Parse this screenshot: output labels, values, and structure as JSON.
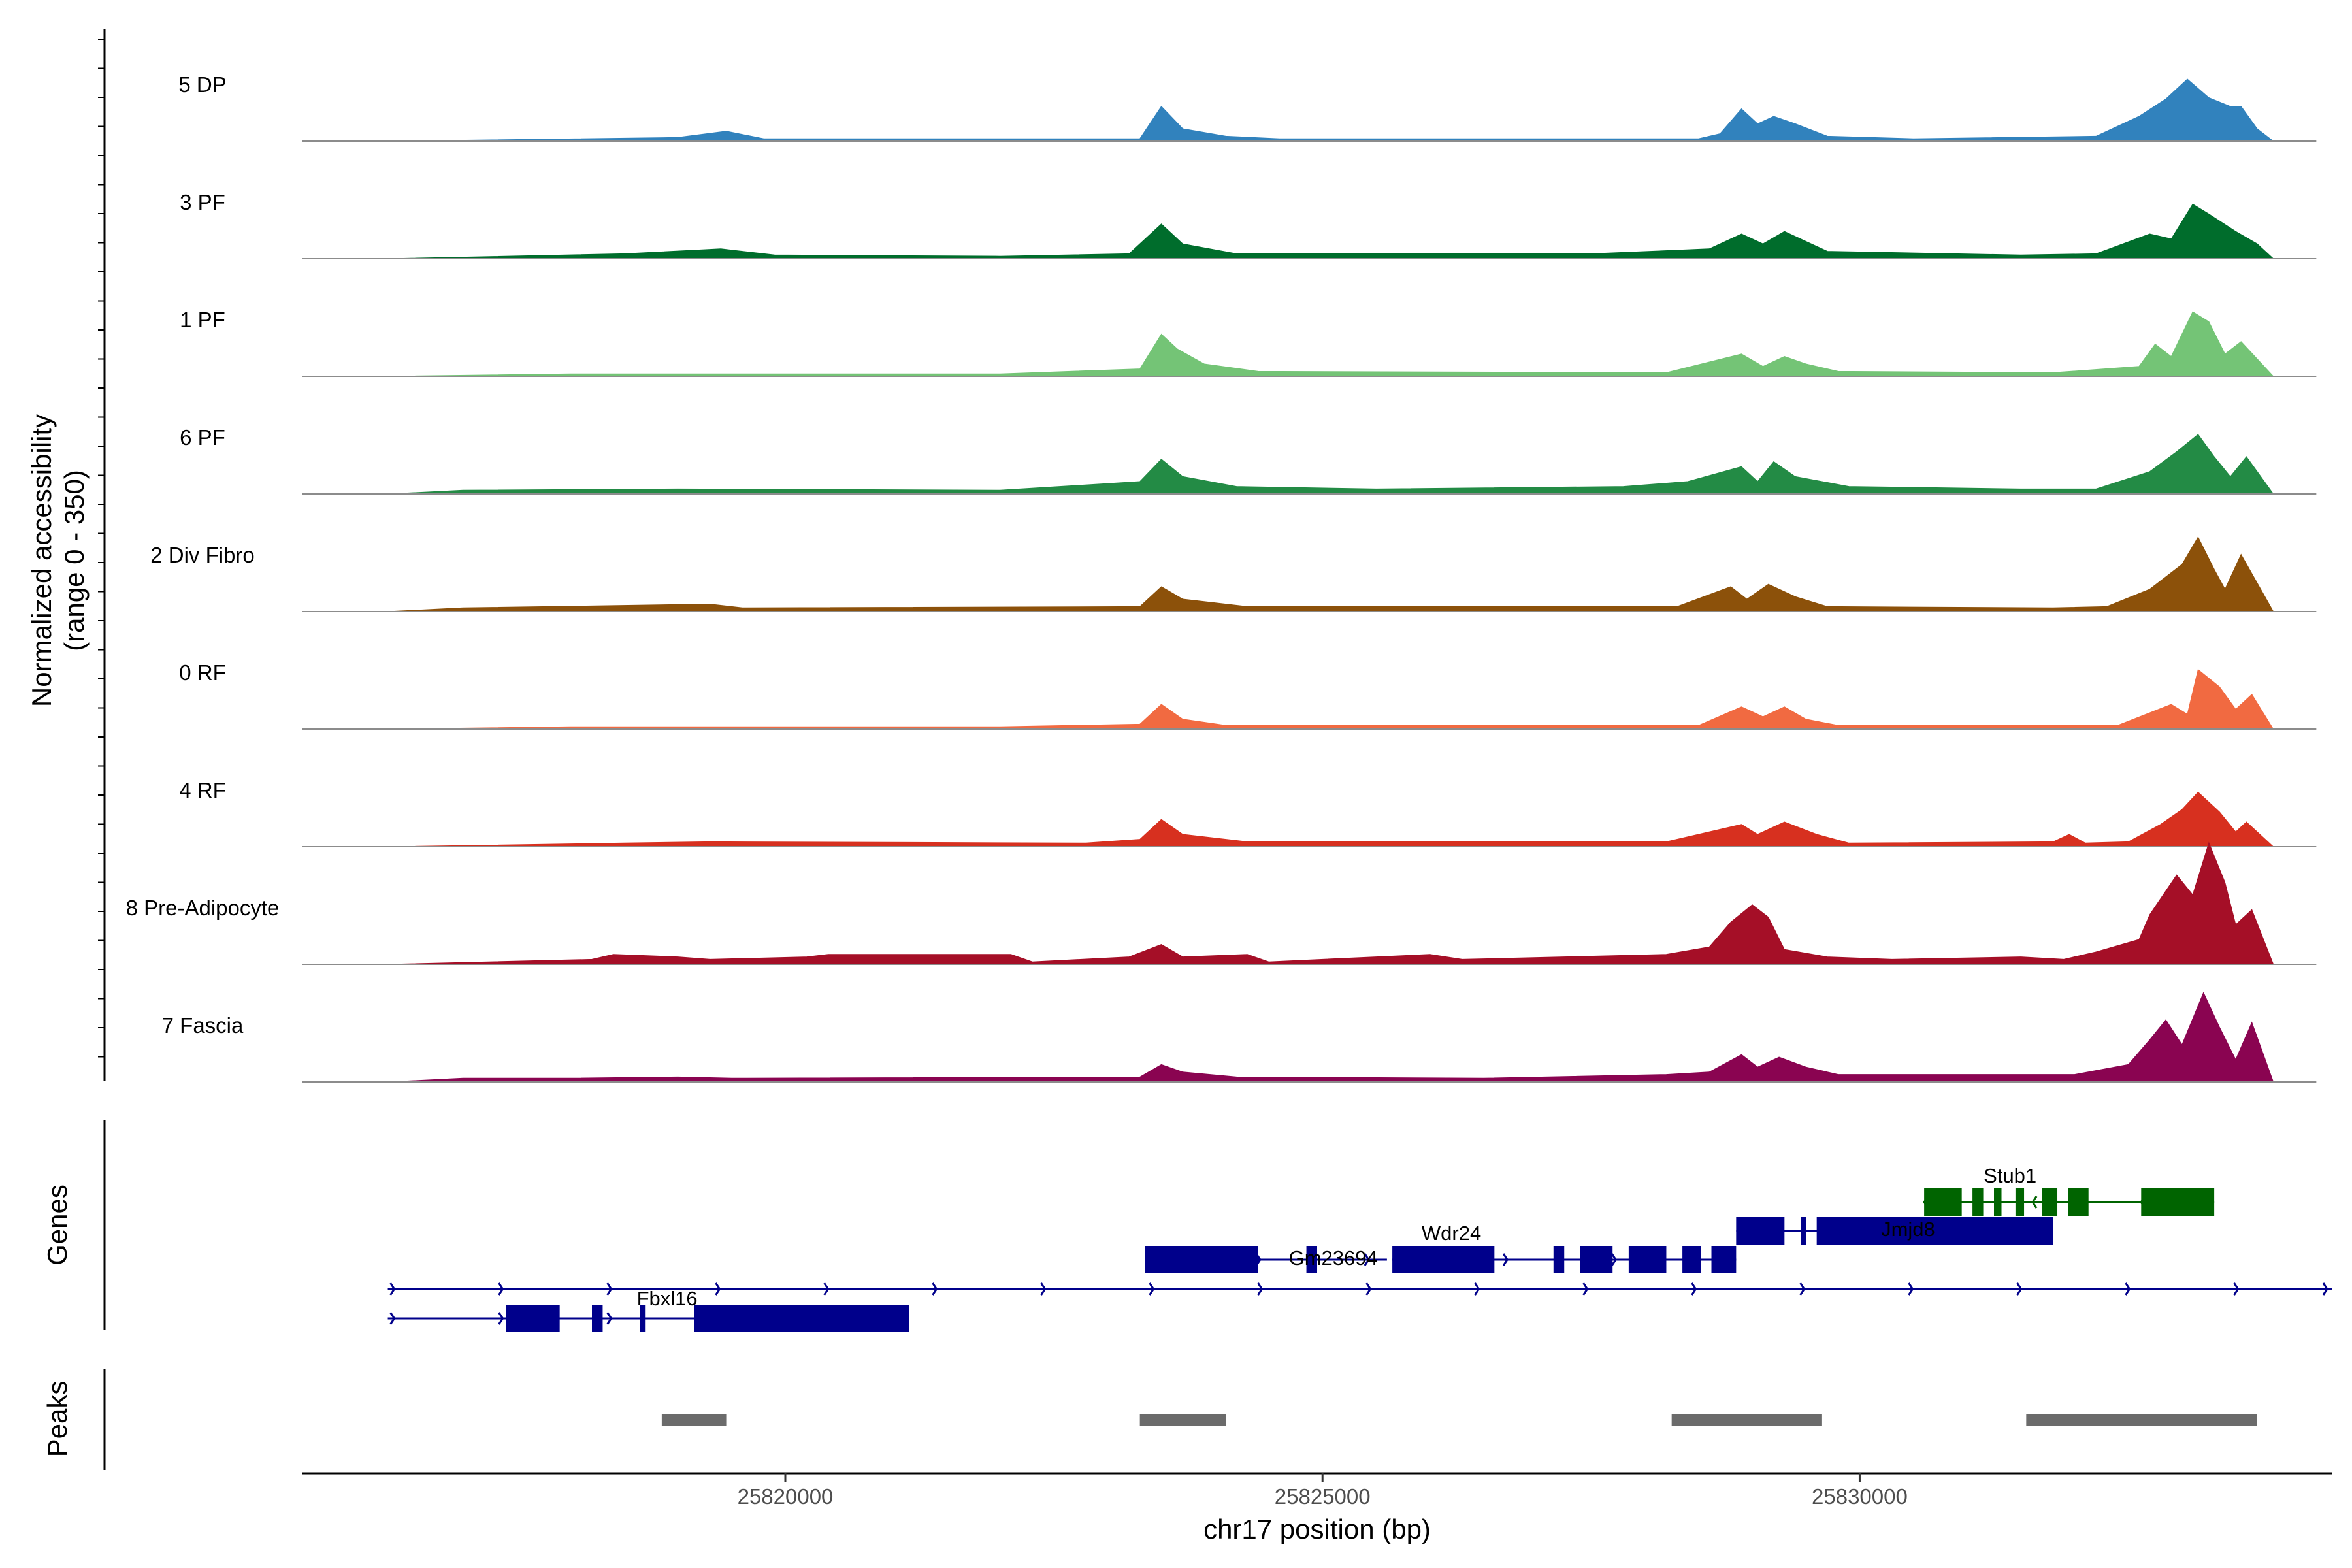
{
  "chart_data": {
    "type": "area",
    "title": "",
    "ylabel": "Normalized accessibility\n(range 0 - 350)",
    "xlabel": "chr17 position (bp)",
    "y_range": [
      0,
      350
    ],
    "x_range": [
      25815500,
      25834400
    ],
    "x_ticks": [
      25820000,
      25825000,
      25830000
    ],
    "x_tick_labels": [
      "25820000",
      "25825000",
      "25830000"
    ],
    "tracks_label": "Genes",
    "peaks_label": "Peaks",
    "series": [
      {
        "name": "5 DP",
        "color": "#3182BD",
        "values": [
          [
            25816300,
            0
          ],
          [
            25819000,
            3
          ],
          [
            25819450,
            8
          ],
          [
            25819800,
            2
          ],
          [
            25823300,
            2
          ],
          [
            25823500,
            28
          ],
          [
            25823700,
            10
          ],
          [
            25824100,
            4
          ],
          [
            25824600,
            2
          ],
          [
            25828500,
            2
          ],
          [
            25828700,
            6
          ],
          [
            25828900,
            26
          ],
          [
            25829050,
            14
          ],
          [
            25829200,
            20
          ],
          [
            25829400,
            14
          ],
          [
            25829700,
            4
          ],
          [
            25830500,
            2
          ],
          [
            25832200,
            4
          ],
          [
            25832600,
            20
          ],
          [
            25832850,
            34
          ],
          [
            25833050,
            50
          ],
          [
            25833250,
            35
          ],
          [
            25833450,
            28
          ],
          [
            25833550,
            28
          ],
          [
            25833700,
            10
          ],
          [
            25833850,
            0
          ]
        ]
      },
      {
        "name": "3 PF",
        "color": "#006D2C",
        "values": [
          [
            25816300,
            0
          ],
          [
            25818500,
            4
          ],
          [
            25819400,
            8
          ],
          [
            25819900,
            3
          ],
          [
            25822000,
            2
          ],
          [
            25823200,
            4
          ],
          [
            25823500,
            28
          ],
          [
            25823700,
            12
          ],
          [
            25824200,
            4
          ],
          [
            25827500,
            4
          ],
          [
            25828600,
            8
          ],
          [
            25828900,
            20
          ],
          [
            25829100,
            12
          ],
          [
            25829300,
            22
          ],
          [
            25829500,
            14
          ],
          [
            25829700,
            6
          ],
          [
            25831500,
            3
          ],
          [
            25832200,
            4
          ],
          [
            25832700,
            20
          ],
          [
            25832900,
            16
          ],
          [
            25833100,
            44
          ],
          [
            25833250,
            36
          ],
          [
            25833500,
            22
          ],
          [
            25833700,
            12
          ],
          [
            25833850,
            0
          ]
        ]
      },
      {
        "name": "1 PF",
        "color": "#74C476",
        "values": [
          [
            25816300,
            0
          ],
          [
            25818000,
            2
          ],
          [
            25822000,
            2
          ],
          [
            25823300,
            6
          ],
          [
            25823500,
            34
          ],
          [
            25823650,
            22
          ],
          [
            25823900,
            10
          ],
          [
            25824400,
            4
          ],
          [
            25828200,
            3
          ],
          [
            25828900,
            18
          ],
          [
            25829100,
            8
          ],
          [
            25829300,
            16
          ],
          [
            25829500,
            10
          ],
          [
            25829800,
            4
          ],
          [
            25831800,
            3
          ],
          [
            25832600,
            8
          ],
          [
            25832750,
            26
          ],
          [
            25832900,
            16
          ],
          [
            25833100,
            52
          ],
          [
            25833250,
            44
          ],
          [
            25833400,
            18
          ],
          [
            25833550,
            28
          ],
          [
            25833700,
            14
          ],
          [
            25833850,
            0
          ]
        ]
      },
      {
        "name": "6 PF",
        "color": "#238B45",
        "values": [
          [
            25816300,
            0
          ],
          [
            25817000,
            3
          ],
          [
            25819000,
            4
          ],
          [
            25822000,
            3
          ],
          [
            25823300,
            10
          ],
          [
            25823500,
            28
          ],
          [
            25823700,
            14
          ],
          [
            25824200,
            6
          ],
          [
            25825500,
            4
          ],
          [
            25827800,
            6
          ],
          [
            25828400,
            10
          ],
          [
            25828900,
            22
          ],
          [
            25829050,
            10
          ],
          [
            25829200,
            26
          ],
          [
            25829400,
            14
          ],
          [
            25829900,
            6
          ],
          [
            25831500,
            4
          ],
          [
            25832200,
            4
          ],
          [
            25832700,
            18
          ],
          [
            25832950,
            34
          ],
          [
            25833150,
            48
          ],
          [
            25833300,
            30
          ],
          [
            25833450,
            14
          ],
          [
            25833600,
            30
          ],
          [
            25833850,
            0
          ]
        ]
      },
      {
        "name": "2 Div Fibro",
        "color": "#8C510A",
        "values": [
          [
            25816300,
            0
          ],
          [
            25817000,
            3
          ],
          [
            25819300,
            6
          ],
          [
            25819600,
            3
          ],
          [
            25823300,
            4
          ],
          [
            25823500,
            20
          ],
          [
            25823700,
            10
          ],
          [
            25824300,
            4
          ],
          [
            25828300,
            4
          ],
          [
            25828800,
            20
          ],
          [
            25828950,
            10
          ],
          [
            25829150,
            22
          ],
          [
            25829400,
            12
          ],
          [
            25829700,
            4
          ],
          [
            25831800,
            3
          ],
          [
            25832300,
            4
          ],
          [
            25832700,
            18
          ],
          [
            25833000,
            38
          ],
          [
            25833150,
            60
          ],
          [
            25833300,
            34
          ],
          [
            25833400,
            18
          ],
          [
            25833550,
            46
          ],
          [
            25833850,
            0
          ]
        ]
      },
      {
        "name": "0 RF",
        "color": "#F16A41",
        "values": [
          [
            25816300,
            0
          ],
          [
            25818000,
            2
          ],
          [
            25822000,
            2
          ],
          [
            25823300,
            4
          ],
          [
            25823500,
            20
          ],
          [
            25823700,
            8
          ],
          [
            25824100,
            3
          ],
          [
            25828500,
            3
          ],
          [
            25828900,
            18
          ],
          [
            25829100,
            10
          ],
          [
            25829300,
            18
          ],
          [
            25829500,
            8
          ],
          [
            25829800,
            3
          ],
          [
            25832400,
            3
          ],
          [
            25832900,
            20
          ],
          [
            25833050,
            12
          ],
          [
            25833150,
            48
          ],
          [
            25833350,
            34
          ],
          [
            25833500,
            16
          ],
          [
            25833650,
            28
          ],
          [
            25833850,
            0
          ]
        ]
      },
      {
        "name": "4 RF",
        "color": "#D7301F",
        "values": [
          [
            25816300,
            0
          ],
          [
            25818500,
            3
          ],
          [
            25819300,
            4
          ],
          [
            25822800,
            3
          ],
          [
            25823300,
            6
          ],
          [
            25823500,
            22
          ],
          [
            25823700,
            10
          ],
          [
            25824300,
            4
          ],
          [
            25828200,
            4
          ],
          [
            25828900,
            18
          ],
          [
            25829050,
            10
          ],
          [
            25829300,
            20
          ],
          [
            25829600,
            10
          ],
          [
            25829900,
            3
          ],
          [
            25831800,
            4
          ],
          [
            25831950,
            10
          ],
          [
            25832100,
            3
          ],
          [
            25832500,
            4
          ],
          [
            25832800,
            18
          ],
          [
            25833000,
            30
          ],
          [
            25833150,
            44
          ],
          [
            25833350,
            28
          ],
          [
            25833500,
            12
          ],
          [
            25833600,
            20
          ],
          [
            25833850,
            0
          ]
        ]
      },
      {
        "name": "8 Pre-Adipocyte",
        "color": "#A50F27",
        "values": [
          [
            25816300,
            0
          ],
          [
            25818200,
            4
          ],
          [
            25818400,
            8
          ],
          [
            25819000,
            6
          ],
          [
            25819300,
            4
          ],
          [
            25820200,
            6
          ],
          [
            25820400,
            8
          ],
          [
            25822100,
            8
          ],
          [
            25822300,
            2
          ],
          [
            25823200,
            6
          ],
          [
            25823500,
            16
          ],
          [
            25823700,
            6
          ],
          [
            25824300,
            8
          ],
          [
            25824500,
            2
          ],
          [
            25825500,
            6
          ],
          [
            25826000,
            8
          ],
          [
            25826300,
            4
          ],
          [
            25828200,
            8
          ],
          [
            25828600,
            14
          ],
          [
            25828800,
            34
          ],
          [
            25829000,
            48
          ],
          [
            25829150,
            38
          ],
          [
            25829300,
            12
          ],
          [
            25829700,
            6
          ],
          [
            25830300,
            4
          ],
          [
            25831500,
            6
          ],
          [
            25831900,
            4
          ],
          [
            25832200,
            10
          ],
          [
            25832600,
            20
          ],
          [
            25832700,
            40
          ],
          [
            25832950,
            72
          ],
          [
            25833100,
            56
          ],
          [
            25833250,
            98
          ],
          [
            25833400,
            66
          ],
          [
            25833500,
            32
          ],
          [
            25833650,
            44
          ],
          [
            25833850,
            0
          ]
        ]
      },
      {
        "name": "7 Fascia",
        "color": "#8A0451",
        "values": [
          [
            25816300,
            0
          ],
          [
            25817000,
            3
          ],
          [
            25818000,
            3
          ],
          [
            25819000,
            4
          ],
          [
            25819500,
            3
          ],
          [
            25823300,
            4
          ],
          [
            25823500,
            14
          ],
          [
            25823700,
            8
          ],
          [
            25824200,
            4
          ],
          [
            25826500,
            3
          ],
          [
            25828200,
            6
          ],
          [
            25828600,
            8
          ],
          [
            25828900,
            22
          ],
          [
            25829050,
            12
          ],
          [
            25829250,
            20
          ],
          [
            25829500,
            12
          ],
          [
            25829800,
            6
          ],
          [
            25832000,
            6
          ],
          [
            25832500,
            14
          ],
          [
            25832700,
            34
          ],
          [
            25832850,
            50
          ],
          [
            25833000,
            30
          ],
          [
            25833200,
            72
          ],
          [
            25833350,
            44
          ],
          [
            25833500,
            18
          ],
          [
            25833650,
            48
          ],
          [
            25833850,
            0
          ]
        ]
      }
    ],
    "genes": [
      {
        "name": "Stub1",
        "row": 1,
        "color": "#006400",
        "strand": "-",
        "start": 25830600,
        "end": 25833300,
        "exons": [
          [
            25830600,
            25830950
          ],
          [
            25831050,
            25831150
          ],
          [
            25831250,
            25831320
          ],
          [
            25831450,
            25831530
          ],
          [
            25831700,
            25831840
          ],
          [
            25831940,
            25832130
          ],
          [
            25832620,
            25833300
          ]
        ]
      },
      {
        "name": "Jmjd8",
        "row": 2,
        "color": "#00008B",
        "strand": "+",
        "start": 25828850,
        "end": 25831800,
        "exons": [
          [
            25828850,
            25829300
          ],
          [
            25829450,
            25829500
          ],
          [
            25829600,
            25831800
          ]
        ]
      },
      {
        "name": "Wdr24",
        "row": 3,
        "color": "#00008B",
        "strand": "+",
        "start": 25825650,
        "end": 25828850,
        "exons": [
          [
            25825650,
            25826600
          ],
          [
            25827150,
            25827250
          ],
          [
            25827400,
            25827700
          ],
          [
            25827850,
            25828200
          ],
          [
            25828350,
            25828520
          ],
          [
            25828620,
            25828850
          ]
        ]
      },
      {
        "name": "Gm23694",
        "row": 3,
        "color": "#00008B",
        "strand": "+",
        "start": 25823350,
        "end": 25825600,
        "exons": [
          [
            25823350,
            25824400
          ],
          [
            25824850,
            25824950
          ]
        ]
      },
      {
        "name": "",
        "row": 4,
        "color": "#00008B",
        "strand": "+",
        "start": 25816300,
        "end": 25834400,
        "exons": []
      },
      {
        "name": "Fbxl16",
        "row": 5,
        "color": "#00008B",
        "strand": "+",
        "start": 25816300,
        "end": 25821150,
        "exons": [
          [
            25817400,
            25817900
          ],
          [
            25818200,
            25818300
          ],
          [
            25818650,
            25818700
          ],
          [
            25819150,
            25821150
          ]
        ]
      }
    ],
    "peaks": [
      [
        25818850,
        25819450
      ],
      [
        25823300,
        25824100
      ],
      [
        25828250,
        25829650
      ],
      [
        25831550,
        25833700
      ]
    ]
  }
}
